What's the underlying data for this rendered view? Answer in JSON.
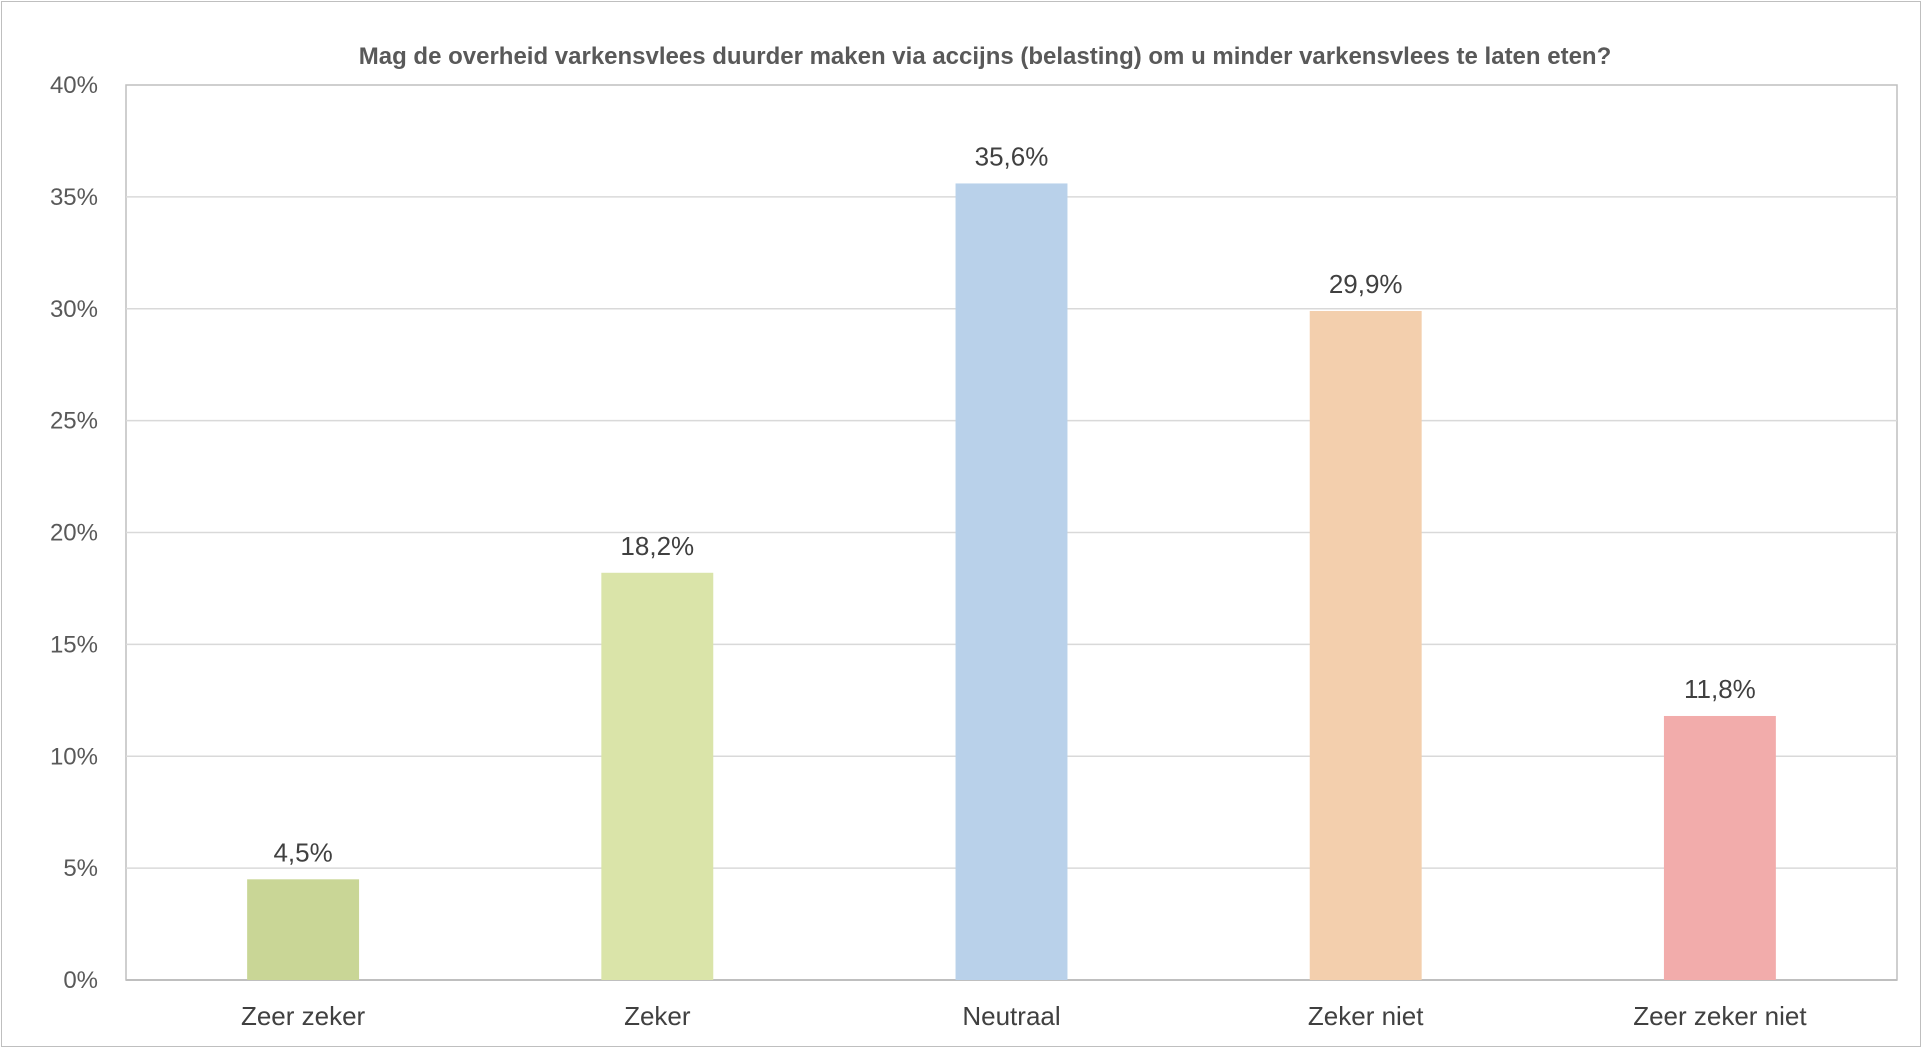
{
  "chart_data": {
    "type": "bar",
    "title": "Mag de overheid varkensvlees duurder maken via accijns (belasting) om u minder varkensvlees te laten eten?",
    "xlabel": "",
    "ylabel": "",
    "categories": [
      "Zeer zeker",
      "Zeker",
      "Neutraal",
      "Zeker niet",
      "Zeer zeker niet"
    ],
    "values": [
      4.5,
      18.2,
      35.6,
      29.9,
      11.8
    ],
    "data_labels": [
      "4,5%",
      "18,2%",
      "35,6%",
      "29,9%",
      "11,8%"
    ],
    "ylim": [
      0,
      40
    ],
    "yticks": [
      0,
      5,
      10,
      15,
      20,
      25,
      30,
      35,
      40
    ],
    "ytick_labels": [
      "0%",
      "5%",
      "10%",
      "15%",
      "20%",
      "25%",
      "30%",
      "35%",
      "40%"
    ],
    "colors": [
      "#c9d696",
      "#dae4a9",
      "#b9d1ea",
      "#f3cfad",
      "#f2acab"
    ],
    "grid": true,
    "legend": "none"
  }
}
